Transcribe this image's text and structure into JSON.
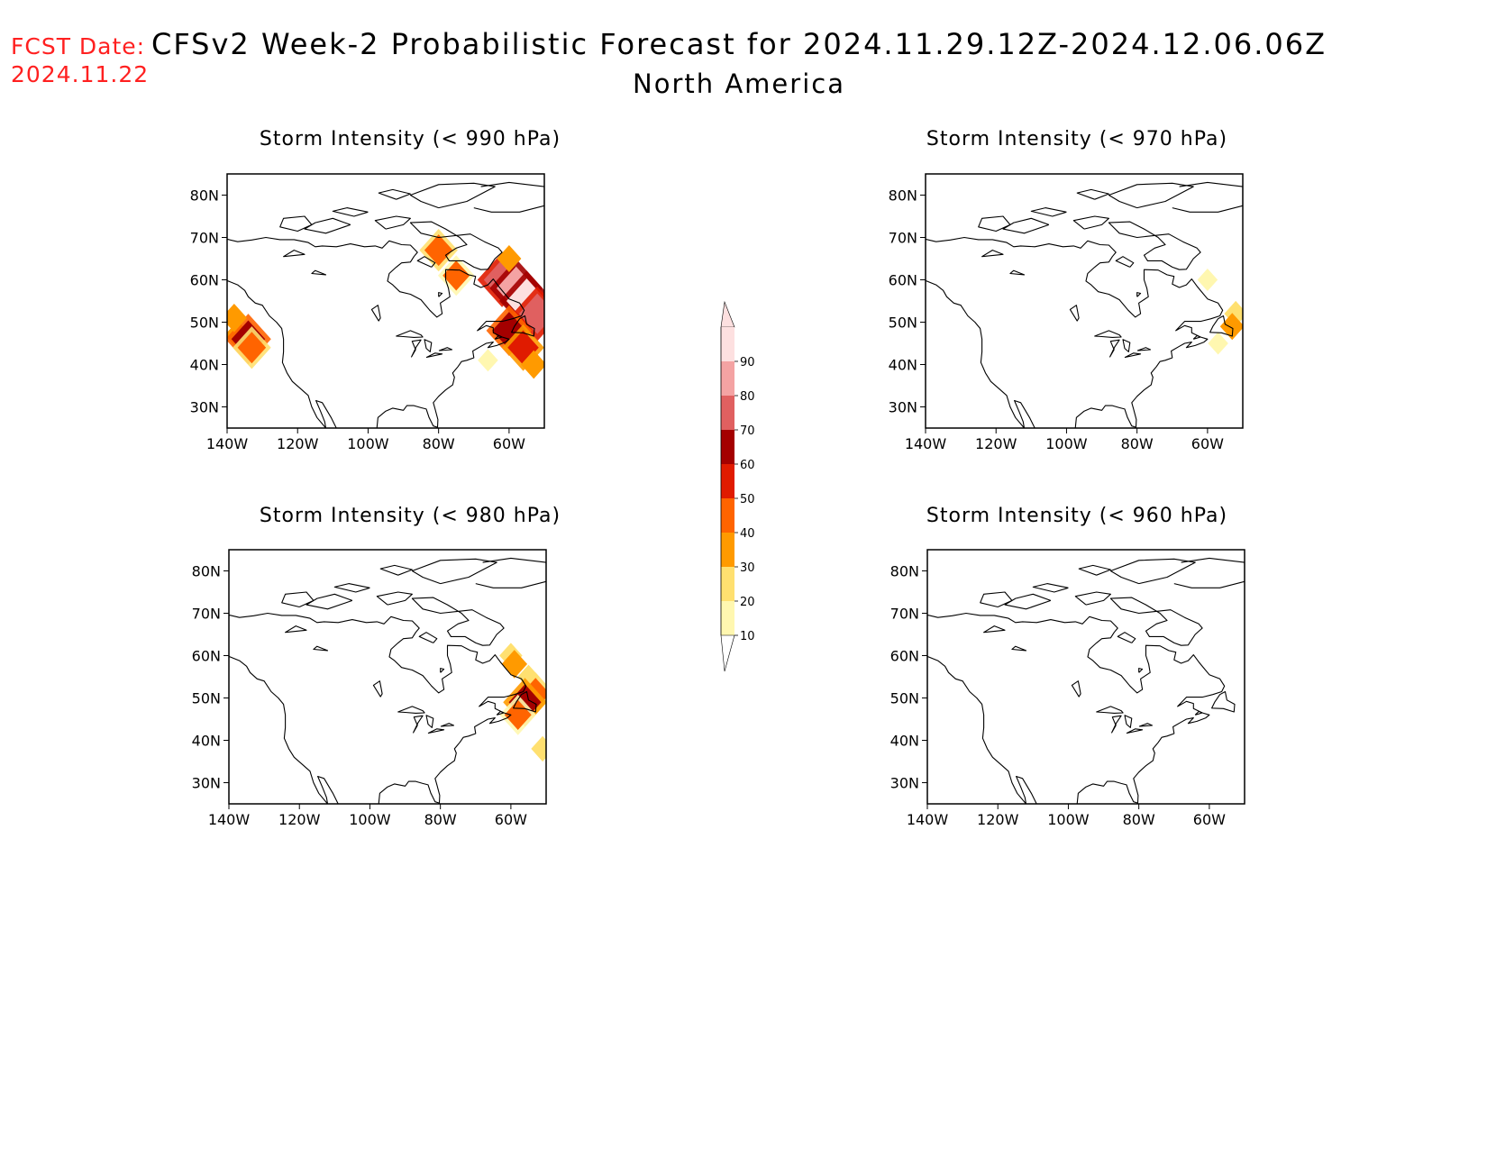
{
  "header": {
    "fcst_label": "FCST Date:",
    "fcst_date": "2024.11.22",
    "title": "CFSv2 Week-2 Probabilistic Forecast for 2024.11.29.12Z-2024.12.06.06Z",
    "subtitle": "North America"
  },
  "colors": {
    "fcst_text": "#ff2020",
    "coastline": "#000000"
  },
  "panels": [
    {
      "id": "p990",
      "title": "Storm Intensity (< 990 hPa)",
      "lat_ticks": [
        "80N",
        "70N",
        "60N",
        "50N",
        "40N",
        "30N"
      ],
      "lon_ticks": [
        "140W",
        "120W",
        "100W",
        "80W",
        "60W"
      ],
      "areas": [
        {
          "lon": -137,
          "lat": 47,
          "p": 35
        },
        {
          "lon": -134,
          "lat": 46,
          "p": 65
        },
        {
          "lon": -133,
          "lat": 44,
          "p": 45
        },
        {
          "lon": -138,
          "lat": 51,
          "p": 35
        },
        {
          "lon": -62,
          "lat": 60,
          "p": 75
        },
        {
          "lon": -58,
          "lat": 58,
          "p": 85
        },
        {
          "lon": -55,
          "lat": 55,
          "p": 90
        },
        {
          "lon": -52,
          "lat": 52,
          "p": 75
        },
        {
          "lon": -60,
          "lat": 48,
          "p": 65
        },
        {
          "lon": -56,
          "lat": 44,
          "p": 55
        },
        {
          "lon": -53,
          "lat": 40,
          "p": 35
        },
        {
          "lon": -60,
          "lat": 65,
          "p": 30
        },
        {
          "lon": -80,
          "lat": 67,
          "p": 45
        },
        {
          "lon": -75,
          "lat": 61,
          "p": 40
        },
        {
          "lon": -66,
          "lat": 41,
          "p": 15
        }
      ]
    },
    {
      "id": "p970",
      "title": "Storm Intensity (< 970 hPa)",
      "lat_ticks": [
        "80N",
        "70N",
        "60N",
        "50N",
        "40N",
        "30N"
      ],
      "lon_ticks": [
        "140W",
        "120W",
        "100W",
        "80W",
        "60W"
      ],
      "areas": [
        {
          "lon": -60,
          "lat": 60,
          "p": 15
        },
        {
          "lon": -52,
          "lat": 52,
          "p": 25
        },
        {
          "lon": -53,
          "lat": 49,
          "p": 30
        },
        {
          "lon": -57,
          "lat": 45,
          "p": 15
        }
      ]
    },
    {
      "id": "p980",
      "title": "Storm Intensity (< 980 hPa)",
      "lat_ticks": [
        "80N",
        "70N",
        "60N",
        "50N",
        "40N",
        "30N"
      ],
      "lon_ticks": [
        "140W",
        "120W",
        "100W",
        "80W",
        "60W"
      ],
      "areas": [
        {
          "lon": -60,
          "lat": 60,
          "p": 25
        },
        {
          "lon": -55,
          "lat": 55,
          "p": 20
        },
        {
          "lon": -53,
          "lat": 51,
          "p": 45
        },
        {
          "lon": -56,
          "lat": 49,
          "p": 60
        },
        {
          "lon": -58,
          "lat": 46,
          "p": 40
        },
        {
          "lon": -51,
          "lat": 38,
          "p": 25
        },
        {
          "lon": -59,
          "lat": 58,
          "p": 35
        }
      ]
    },
    {
      "id": "p960",
      "title": "Storm Intensity (< 960 hPa)",
      "lat_ticks": [
        "80N",
        "70N",
        "60N",
        "50N",
        "40N",
        "30N"
      ],
      "lon_ticks": [
        "140W",
        "120W",
        "100W",
        "80W",
        "60W"
      ],
      "areas": []
    }
  ],
  "colorbar": {
    "labels": [
      "90",
      "80",
      "70",
      "60",
      "50",
      "40",
      "30",
      "20",
      "10"
    ],
    "colors": [
      "#fde0e0",
      "#f4a3a3",
      "#e06060",
      "#a40000",
      "#e01b00",
      "#ff6400",
      "#ff9a00",
      "#ffe070",
      "#fff7b0"
    ]
  }
}
